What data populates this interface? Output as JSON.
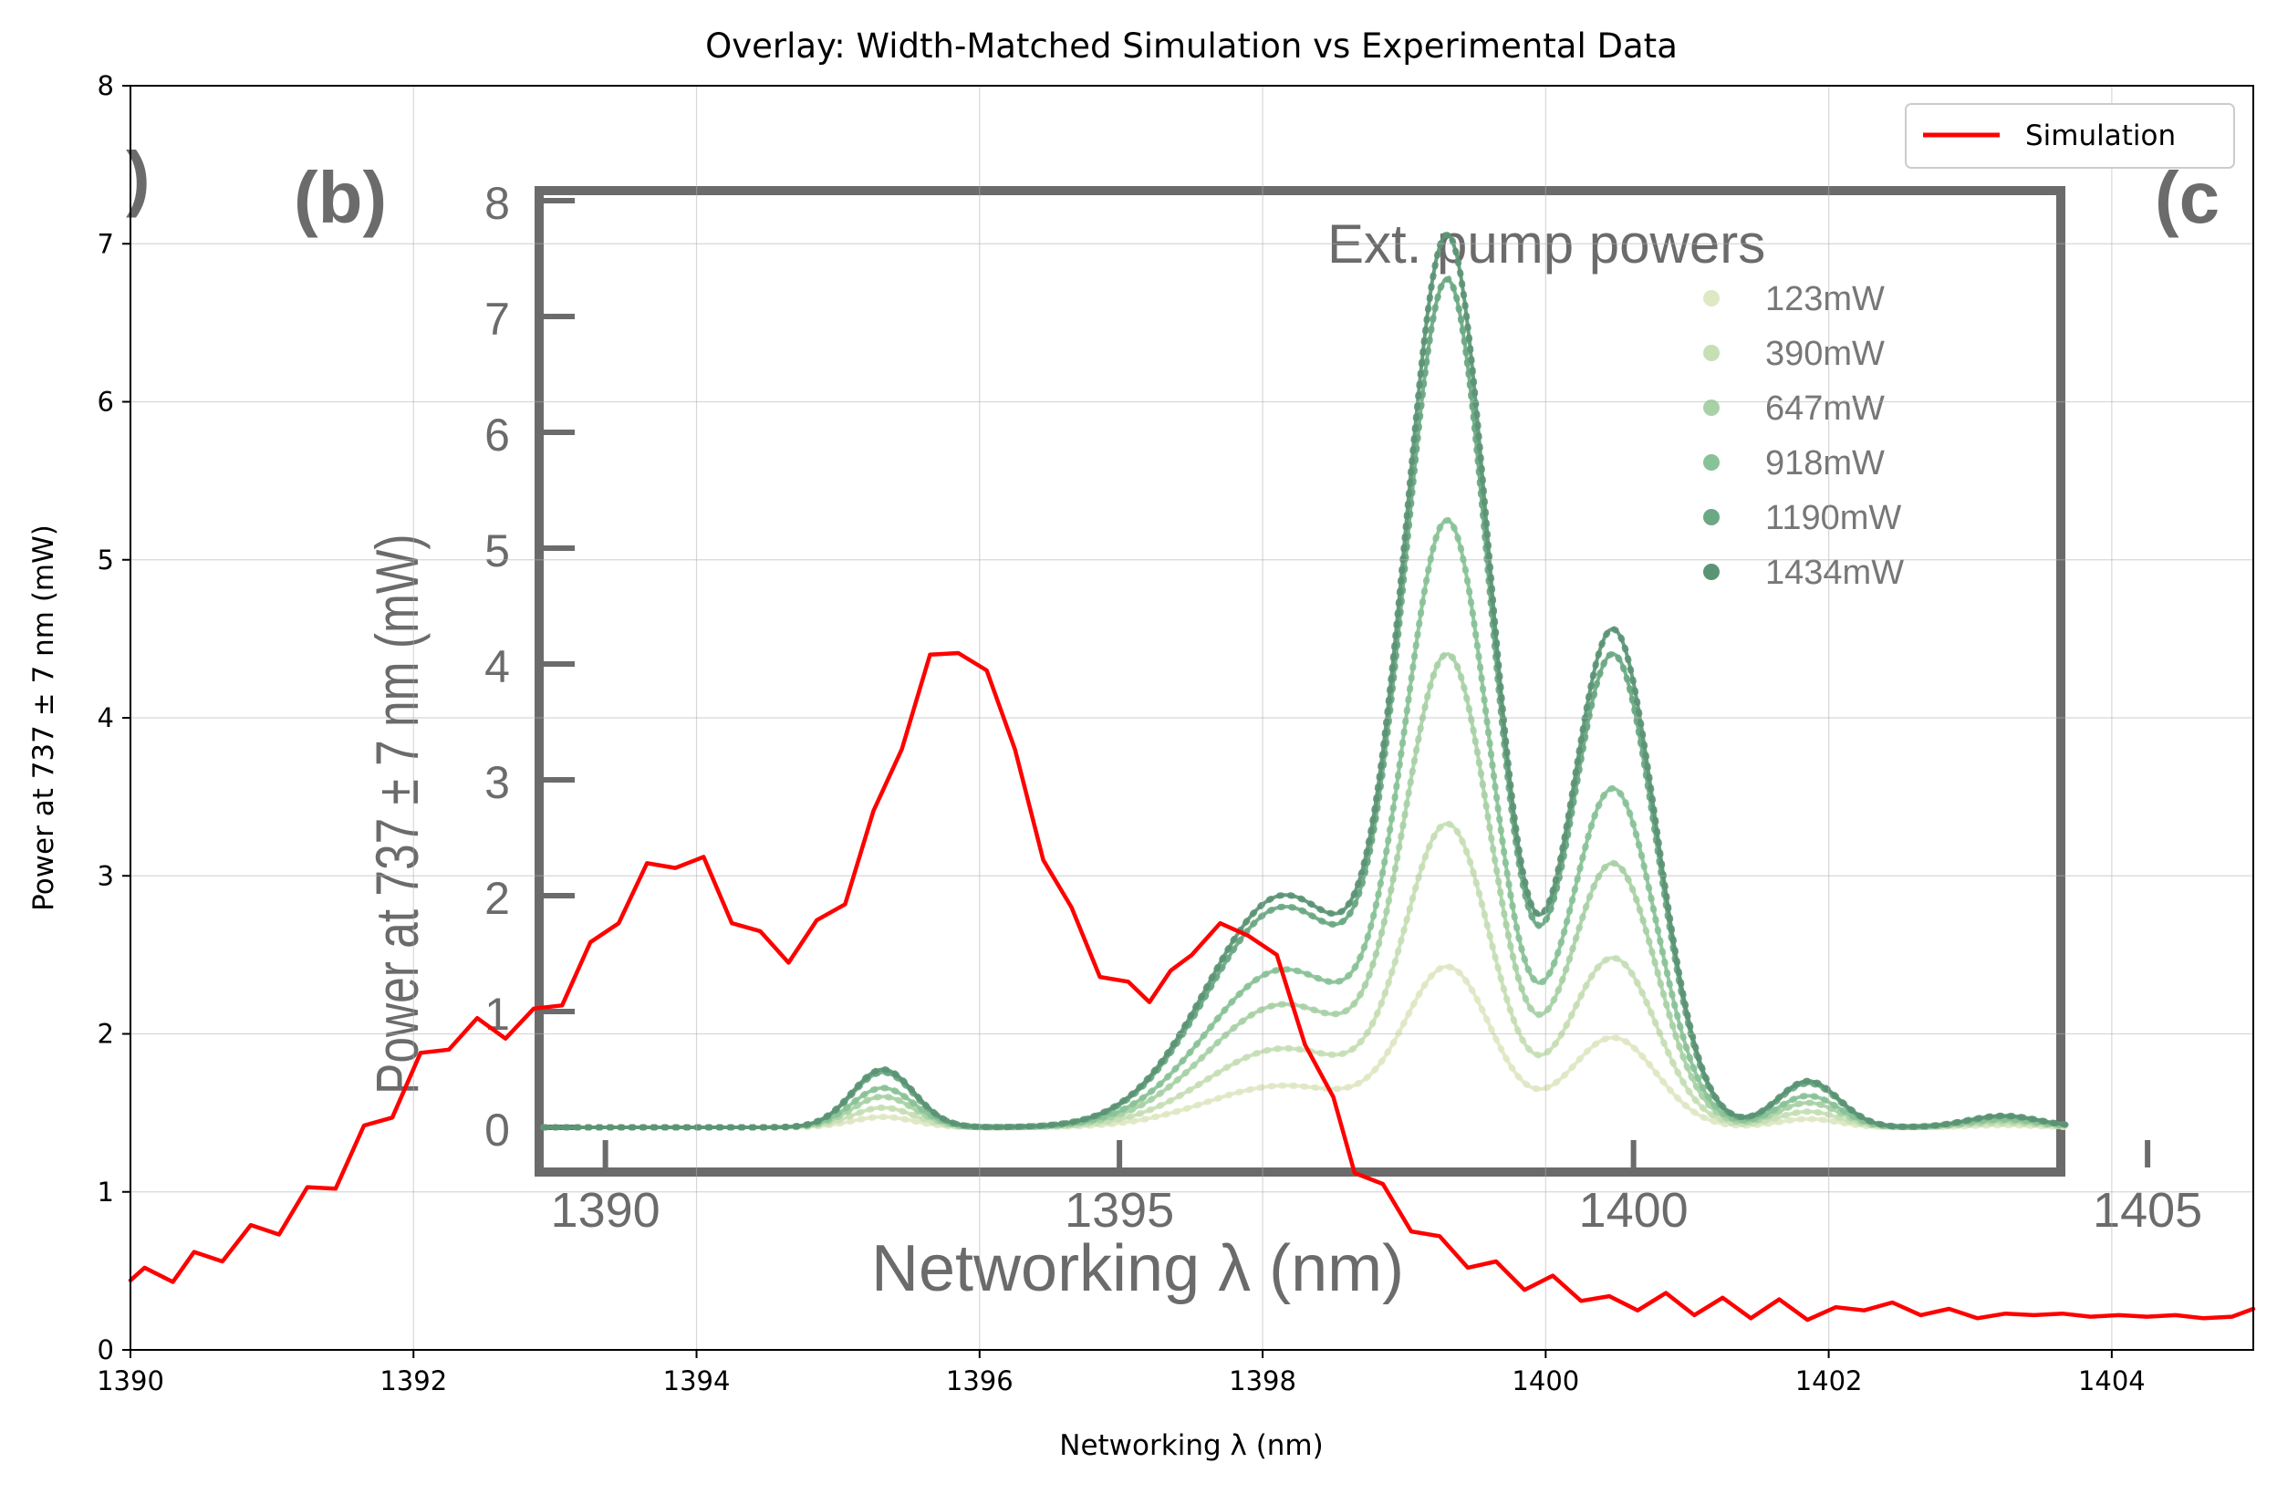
{
  "chart_data": {
    "type": "line",
    "title": "Overlay: Width-Matched Simulation vs Experimental Data",
    "xlabel": "Networking λ (nm)",
    "ylabel": "Power at 737 ± 7 nm (mW)",
    "xlim": [
      1390,
      1405
    ],
    "ylim": [
      0,
      8
    ],
    "xticks": [
      1390,
      1392,
      1394,
      1396,
      1398,
      1400,
      1402,
      1404
    ],
    "yticks": [
      0,
      1,
      2,
      3,
      4,
      5,
      6,
      7,
      8
    ],
    "grid": true,
    "legend_position": "top-right",
    "series": [
      {
        "name": "Simulation",
        "color": "#ff0000",
        "x": [
          1390.0,
          1390.1,
          1390.3,
          1390.45,
          1390.65,
          1390.85,
          1391.05,
          1391.25,
          1391.45,
          1391.65,
          1391.85,
          1392.05,
          1392.25,
          1392.45,
          1392.65,
          1392.85,
          1393.05,
          1393.25,
          1393.45,
          1393.65,
          1393.85,
          1394.05,
          1394.25,
          1394.45,
          1394.65,
          1394.85,
          1395.05,
          1395.25,
          1395.45,
          1395.65,
          1395.85,
          1396.05,
          1396.25,
          1396.45,
          1396.65,
          1396.85,
          1397.05,
          1397.2,
          1397.35,
          1397.5,
          1397.7,
          1397.9,
          1398.1,
          1398.3,
          1398.5,
          1398.65,
          1398.85,
          1399.05,
          1399.25,
          1399.45,
          1399.65,
          1399.85,
          1400.05,
          1400.25,
          1400.45,
          1400.65,
          1400.85,
          1401.05,
          1401.25,
          1401.45,
          1401.65,
          1401.85,
          1402.05,
          1402.25,
          1402.45,
          1402.65,
          1402.85,
          1403.05,
          1403.25,
          1403.45,
          1403.65,
          1403.85,
          1404.05,
          1404.25,
          1404.45,
          1404.65,
          1404.85,
          1405.0
        ],
        "values": [
          0.44,
          0.52,
          0.43,
          0.62,
          0.56,
          0.79,
          0.73,
          1.03,
          1.02,
          1.42,
          1.47,
          1.88,
          1.9,
          2.1,
          1.97,
          2.16,
          2.18,
          2.58,
          2.7,
          3.08,
          3.05,
          3.12,
          2.7,
          2.65,
          2.45,
          2.72,
          2.82,
          3.41,
          3.8,
          4.4,
          4.41,
          4.3,
          3.8,
          3.1,
          2.8,
          2.36,
          2.33,
          2.2,
          2.4,
          2.5,
          2.7,
          2.62,
          2.5,
          1.93,
          1.6,
          1.12,
          1.05,
          0.75,
          0.72,
          0.52,
          0.56,
          0.38,
          0.47,
          0.31,
          0.34,
          0.25,
          0.36,
          0.22,
          0.33,
          0.2,
          0.32,
          0.19,
          0.27,
          0.25,
          0.3,
          0.22,
          0.26,
          0.2,
          0.23,
          0.22,
          0.23,
          0.21,
          0.22,
          0.21,
          0.22,
          0.2,
          0.21,
          0.26
        ]
      }
    ]
  },
  "inset": {
    "panel_labels": [
      "(b)",
      "(c",
      ")"
    ],
    "ylabel": "Power at 737 ± 7 nm (mW)",
    "xlabel": "Networking λ (nm)",
    "yticks": [
      "0",
      "1",
      "2",
      "3",
      "4",
      "5",
      "6",
      "7",
      "8"
    ],
    "xticks": [
      "1390",
      "1395",
      "1400",
      "1405"
    ],
    "legend_title": "Ext. pump powers",
    "legend_entries": [
      "123mW",
      "390mW",
      "647mW",
      "918mW",
      "1190mW",
      "1434mW"
    ],
    "series_colors": [
      "#dfe8c4",
      "#c6dfb5",
      "#a8d2a6",
      "#88c297",
      "#6aa983",
      "#5b9474"
    ],
    "series_scale": [
      0.18,
      0.34,
      0.53,
      0.68,
      0.95,
      1.0
    ]
  }
}
